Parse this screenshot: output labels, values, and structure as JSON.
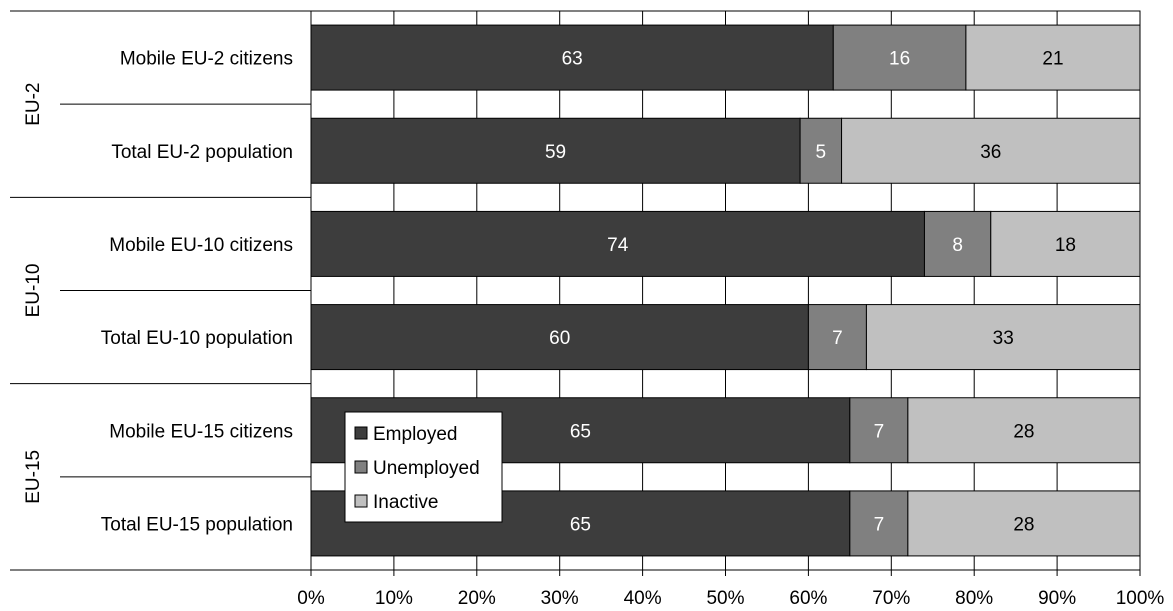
{
  "chart_data": {
    "type": "bar",
    "orientation": "horizontal",
    "stacked": "percent",
    "categories": [
      "Mobile EU-2 citizens",
      "Total EU-2 population",
      "Mobile EU-10 citizens",
      "Total EU-10 population",
      "Mobile EU-15 citizens",
      "Total EU-15 population"
    ],
    "groups": [
      {
        "label": "EU-2",
        "categories": [
          0,
          1
        ]
      },
      {
        "label": "EU-10",
        "categories": [
          2,
          3
        ]
      },
      {
        "label": "EU-15",
        "categories": [
          4,
          5
        ]
      }
    ],
    "series": [
      {
        "name": "Employed",
        "color": "#3d3d3d",
        "label_color": "#ffffff",
        "values": [
          63,
          59,
          74,
          60,
          65,
          65
        ]
      },
      {
        "name": "Unemployed",
        "color": "#808080",
        "label_color": "#ffffff",
        "values": [
          16,
          5,
          8,
          7,
          7,
          7
        ]
      },
      {
        "name": "Inactive",
        "color": "#c0c0c0",
        "label_color": "#000000",
        "values": [
          21,
          36,
          18,
          33,
          28,
          28
        ]
      }
    ],
    "xlim": [
      0,
      100
    ],
    "xticks": [
      "0%",
      "10%",
      "20%",
      "30%",
      "40%",
      "50%",
      "60%",
      "70%",
      "80%",
      "90%",
      "100%"
    ],
    "grid": "vertical",
    "legend": "inside-bottom-left",
    "title": "",
    "xlabel": "",
    "ylabel": ""
  }
}
